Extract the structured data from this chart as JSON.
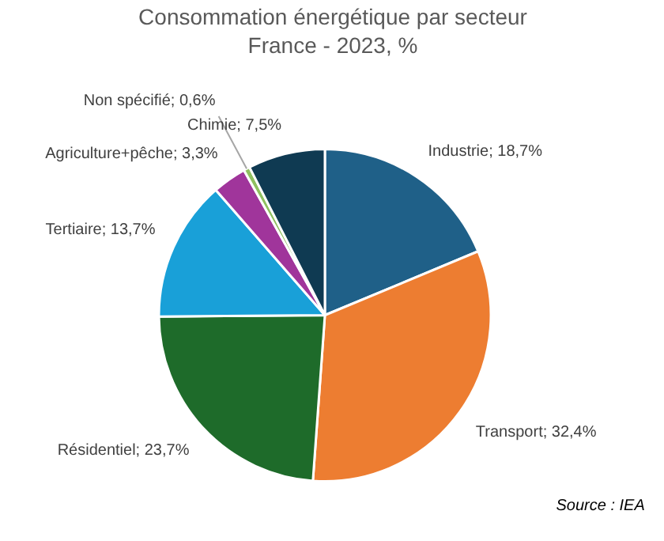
{
  "chart_data": {
    "type": "pie",
    "title": "Consommation énergétique par secteur",
    "subtitle": "France - 2023, %",
    "categories": [
      "Industrie",
      "Transport",
      "Résidentiel",
      "Tertiaire",
      "Agriculture+pêche",
      "Non spécifié",
      "Chimie"
    ],
    "values": [
      18.7,
      32.4,
      23.7,
      13.7,
      3.3,
      0.6,
      7.5
    ],
    "value_labels": [
      "18,7%",
      "32,4%",
      "23,7%",
      "13,7%",
      "3,3%",
      "0,6%",
      "7,5%"
    ],
    "colors": [
      "#1f6088",
      "#ed7d31",
      "#1e6b2a",
      "#19a0d8",
      "#a0359b",
      "#8fc060",
      "#0f3a52"
    ],
    "annotations": [
      "Source : IEA"
    ]
  }
}
